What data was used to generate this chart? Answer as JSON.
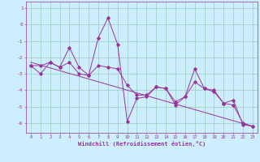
{
  "xlabel": "Windchill (Refroidissement éolien,°C)",
  "background_color": "#cceeff",
  "grid_color": "#99ccbb",
  "line_color": "#993399",
  "xlim": [
    -0.5,
    23.5
  ],
  "ylim": [
    -6.6,
    1.4
  ],
  "yticks": [
    1,
    0,
    -1,
    -2,
    -3,
    -4,
    -5,
    -6
  ],
  "xticks": [
    0,
    1,
    2,
    3,
    4,
    5,
    6,
    7,
    8,
    9,
    10,
    11,
    12,
    13,
    14,
    15,
    16,
    17,
    18,
    19,
    20,
    21,
    22,
    23
  ],
  "line1_x": [
    0,
    1,
    2,
    3,
    4,
    5,
    6,
    7,
    8,
    9,
    10,
    11,
    12,
    13,
    14,
    15,
    16,
    17,
    18,
    19,
    20,
    21,
    22,
    23
  ],
  "line1_y": [
    -2.5,
    -3.0,
    -2.3,
    -2.6,
    -1.4,
    -2.6,
    -3.1,
    -0.8,
    0.4,
    -1.2,
    -5.9,
    -4.5,
    -4.4,
    -3.8,
    -3.9,
    -4.9,
    -4.4,
    -2.7,
    -3.9,
    -4.0,
    -4.8,
    -4.6,
    -6.1,
    -6.2
  ],
  "line2_x": [
    0,
    1,
    2,
    3,
    4,
    5,
    6,
    7,
    8,
    9,
    10,
    11,
    12,
    13,
    14,
    15,
    16,
    17,
    18,
    19,
    20,
    21,
    22,
    23
  ],
  "line2_y": [
    -2.5,
    -2.5,
    -2.3,
    -2.6,
    -2.3,
    -3.0,
    -3.1,
    -2.5,
    -2.6,
    -2.7,
    -3.7,
    -4.3,
    -4.3,
    -3.8,
    -3.9,
    -4.7,
    -4.4,
    -3.5,
    -3.9,
    -4.1,
    -4.8,
    -4.9,
    -6.0,
    -6.2
  ],
  "trend_x": [
    0,
    23
  ],
  "trend_y": [
    -2.3,
    -6.2
  ],
  "marker_size": 1.8,
  "line_width": 0.7,
  "tick_fontsize": 4.0,
  "xlabel_fontsize": 5.0
}
